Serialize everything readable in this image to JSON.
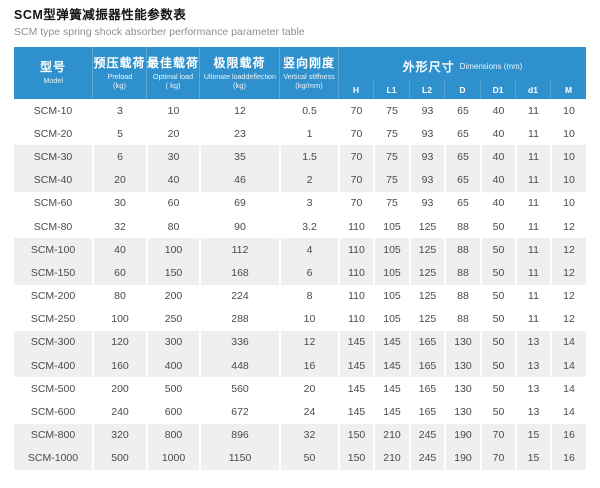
{
  "page": {
    "title_cn": "SCM型弹簧减振器性能参数表",
    "title_en": "SCM type spring shock absorber performance parameter table"
  },
  "table": {
    "columns": [
      {
        "key": "model",
        "cn": "型号",
        "en": "Model",
        "unit": ""
      },
      {
        "key": "preload",
        "cn": "预压载荷",
        "en": "Preload",
        "unit": "(kg)"
      },
      {
        "key": "optimal-load",
        "cn": "最佳载荷",
        "en": "Optimal load",
        "unit": "( kg)"
      },
      {
        "key": "ultimate-load",
        "cn": "极限载荷",
        "en": "Ultimate loaddeflection",
        "unit": "(kg)"
      },
      {
        "key": "vertical-stiffness",
        "cn": "竖向刚度",
        "en": "Vertical stiffness",
        "unit": "(kg/mm)"
      }
    ],
    "dims_group": {
      "cn": "外形尺寸",
      "en": "Dimensions (mm)",
      "subcolumns": [
        "H",
        "L1",
        "L2",
        "D",
        "D1",
        "d1",
        "M"
      ]
    },
    "rows": [
      [
        "SCM-10",
        "3",
        "10",
        "12",
        "0.5",
        "70",
        "75",
        "93",
        "65",
        "40",
        "11",
        "10"
      ],
      [
        "SCM-20",
        "5",
        "20",
        "23",
        "1",
        "70",
        "75",
        "93",
        "65",
        "40",
        "11",
        "10"
      ],
      [
        "SCM-30",
        "6",
        "30",
        "35",
        "1.5",
        "70",
        "75",
        "93",
        "65",
        "40",
        "11",
        "10"
      ],
      [
        "SCM-40",
        "20",
        "40",
        "46",
        "2",
        "70",
        "75",
        "93",
        "65",
        "40",
        "11",
        "10"
      ],
      [
        "SCM-60",
        "30",
        "60",
        "69",
        "3",
        "70",
        "75",
        "93",
        "65",
        "40",
        "11",
        "10"
      ],
      [
        "SCM-80",
        "32",
        "80",
        "90",
        "3.2",
        "110",
        "105",
        "125",
        "88",
        "50",
        "11",
        "12"
      ],
      [
        "SCM-100",
        "40",
        "100",
        "112",
        "4",
        "110",
        "105",
        "125",
        "88",
        "50",
        "11",
        "12"
      ],
      [
        "SCM-150",
        "60",
        "150",
        "168",
        "6",
        "110",
        "105",
        "125",
        "88",
        "50",
        "11",
        "12"
      ],
      [
        "SCM-200",
        "80",
        "200",
        "224",
        "8",
        "110",
        "105",
        "125",
        "88",
        "50",
        "11",
        "12"
      ],
      [
        "SCM-250",
        "100",
        "250",
        "288",
        "10",
        "110",
        "105",
        "125",
        "88",
        "50",
        "11",
        "12"
      ],
      [
        "SCM-300",
        "120",
        "300",
        "336",
        "12",
        "145",
        "145",
        "165",
        "130",
        "50",
        "13",
        "14"
      ],
      [
        "SCM-400",
        "160",
        "400",
        "448",
        "16",
        "145",
        "145",
        "165",
        "130",
        "50",
        "13",
        "14"
      ],
      [
        "SCM-500",
        "200",
        "500",
        "560",
        "20",
        "145",
        "145",
        "165",
        "130",
        "50",
        "13",
        "14"
      ],
      [
        "SCM-600",
        "240",
        "600",
        "672",
        "24",
        "145",
        "145",
        "165",
        "130",
        "50",
        "13",
        "14"
      ],
      [
        "SCM-800",
        "320",
        "800",
        "896",
        "32",
        "150",
        "210",
        "245",
        "190",
        "70",
        "15",
        "16"
      ],
      [
        "SCM-1000",
        "500",
        "1000",
        "1150",
        "50",
        "150",
        "210",
        "245",
        "190",
        "70",
        "15",
        "16"
      ]
    ],
    "colors": {
      "header_bg": "#2e90cc",
      "stripe_bg": "#efefef",
      "body_text": "#4a4a4a"
    }
  }
}
